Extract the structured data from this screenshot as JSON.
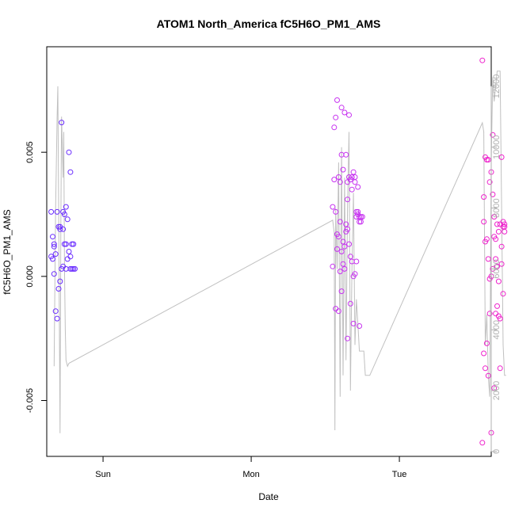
{
  "chart_data": {
    "type": "scatter",
    "title": "ATOM1 North_America fC5H6O_PM1_AMS",
    "xlabel": "Date",
    "ylabel": "fC5H6O_PM1_AMS",
    "x_unit": "days since Sunday 00:00",
    "xlim": [
      -0.38,
      2.62
    ],
    "x_ticks": [
      {
        "value": 0,
        "label": "Sun"
      },
      {
        "value": 1,
        "label": "Mon"
      },
      {
        "value": 2,
        "label": "Tue"
      }
    ],
    "ylim": [
      -0.00725,
      0.00925
    ],
    "y_ticks": [
      {
        "value": -0.005,
        "label": "-0.005"
      },
      {
        "value": 0,
        "label": "0.000"
      },
      {
        "value": 0.005,
        "label": "0.005"
      }
    ],
    "y2lim": [
      -160,
      13300
    ],
    "y2_ticks": [
      {
        "value": 0,
        "label": "0"
      },
      {
        "value": 2000,
        "label": "2000"
      },
      {
        "value": 4000,
        "label": "4000"
      },
      {
        "value": 6000,
        "label": "6000"
      },
      {
        "value": 8000,
        "label": "8000"
      },
      {
        "value": 10000,
        "label": "10000"
      },
      {
        "value": 12000,
        "label": "12000"
      }
    ],
    "grid": false,
    "colors": {
      "line": "#c0c0c0",
      "axis": "#000000",
      "right_axis": "#b0b0b0",
      "points_sun": "#6a2cff",
      "points_mon": "#c733f0",
      "points_tue": "#ee22cc"
    },
    "line_series": {
      "x": [
        -0.33,
        -0.32,
        -0.31,
        -0.305,
        -0.3,
        -0.29,
        -0.285,
        -0.28,
        -0.27,
        -0.265,
        -0.26,
        -0.255,
        -0.25,
        -0.24,
        -0.23,
        1.55,
        1.56,
        1.565,
        1.57,
        1.58,
        1.59,
        1.6,
        1.61,
        1.62,
        1.63,
        1.64,
        1.65,
        1.66,
        1.67,
        1.68,
        1.69,
        1.7,
        1.71,
        1.72,
        1.73,
        1.74,
        1.75,
        1.76,
        1.77,
        1.78,
        1.8,
        2.56,
        2.57,
        2.58,
        2.59,
        2.6,
        2.61,
        2.62,
        2.63,
        2.64,
        2.65,
        2.66,
        2.67,
        2.68,
        2.69,
        2.7,
        2.71,
        2.72
      ],
      "y": [
        2800,
        8000,
        11000,
        12000,
        8000,
        600,
        7500,
        11000,
        9000,
        10500,
        6000,
        4000,
        3000,
        2800,
        2900,
        7600,
        7200,
        700,
        8000,
        6000,
        9500,
        1800,
        10000,
        2500,
        9000,
        3000,
        8000,
        10500,
        2000,
        6000,
        8500,
        3500,
        5000,
        4200,
        3300,
        3300,
        3300,
        3300,
        2500,
        2500,
        2500,
        10800,
        10500,
        3500,
        4500,
        2500,
        1800,
        9500,
        12300,
        11500,
        12000,
        12500,
        12500,
        12500,
        8000,
        3500,
        2500,
        2500
      ]
    },
    "series": [
      {
        "x": [
          -0.35,
          -0.34,
          -0.33,
          -0.32,
          -0.31,
          -0.3,
          -0.29,
          -0.28,
          -0.27,
          -0.26,
          -0.25,
          -0.24,
          -0.23,
          -0.22,
          -0.21,
          -0.2,
          -0.19,
          -0.35,
          -0.34,
          -0.33,
          -0.32,
          -0.31,
          -0.3,
          -0.29,
          -0.28,
          -0.27,
          -0.26,
          -0.25,
          -0.24,
          -0.23,
          -0.22,
          -0.21,
          -0.2,
          -0.33,
          -0.29,
          -0.27,
          -0.25,
          -0.22
        ],
        "y": [
          0.0026,
          0.0016,
          0.0012,
          0.0009,
          0.0026,
          0.002,
          0.0019,
          0.0062,
          0.0026,
          0.0025,
          0.0028,
          0.0023,
          0.005,
          0.0042,
          0.0013,
          0.0003,
          0.0003,
          0.0008,
          0.0007,
          0.0001,
          -0.0014,
          -0.0017,
          -0.0005,
          -0.0002,
          0.0003,
          0.0004,
          0.0013,
          0.0013,
          0.0007,
          0.001,
          0.0008,
          0.0003,
          0.0013,
          0.0013,
          0.002,
          0.0019,
          0.0003,
          0.0003
        ]
      },
      {
        "x": [
          1.55,
          1.56,
          1.57,
          1.58,
          1.59,
          1.6,
          1.61,
          1.62,
          1.63,
          1.64,
          1.65,
          1.66,
          1.67,
          1.68,
          1.69,
          1.7,
          1.71,
          1.72,
          1.73,
          1.74,
          1.75,
          1.56,
          1.57,
          1.58,
          1.59,
          1.6,
          1.61,
          1.62,
          1.63,
          1.64,
          1.65,
          1.66,
          1.67,
          1.68,
          1.69,
          1.7,
          1.71,
          1.72,
          1.73,
          1.74,
          1.55,
          1.57,
          1.59,
          1.61,
          1.63,
          1.65,
          1.67,
          1.69,
          1.71,
          1.73,
          1.58,
          1.6,
          1.62,
          1.64,
          1.66,
          1.68,
          1.7,
          1.72,
          1.61,
          1.65
        ],
        "y": [
          0.0028,
          0.0039,
          0.0064,
          0.0071,
          0.004,
          0.0038,
          0.0049,
          0.0043,
          0.0066,
          0.0049,
          0.0038,
          0.004,
          0.0039,
          0.0035,
          0.0042,
          0.004,
          0.0024,
          0.0026,
          0.0024,
          0.0022,
          0.0024,
          0.006,
          0.0026,
          0.0017,
          0.0016,
          0.0022,
          0.001,
          0.0005,
          0.0012,
          0.0018,
          0.0019,
          0.0013,
          0.0008,
          0.0006,
          0.0,
          0.0001,
          0.0026,
          0.0025,
          0.0022,
          0.0024,
          0.0004,
          -0.0013,
          -0.0014,
          -0.0006,
          0.0003,
          -0.0025,
          -0.0011,
          -0.0019,
          0.0006,
          -0.002,
          0.0011,
          0.0002,
          0.0014,
          0.0021,
          0.0065,
          0.004,
          0.0038,
          0.0036,
          0.0068,
          0.0031
        ]
      },
      {
        "x": [
          2.56,
          2.57,
          2.58,
          2.59,
          2.6,
          2.61,
          2.62,
          2.63,
          2.64,
          2.65,
          2.66,
          2.67,
          2.68,
          2.69,
          2.7,
          2.71,
          2.57,
          2.58,
          2.59,
          2.6,
          2.61,
          2.62,
          2.63,
          2.64,
          2.65,
          2.66,
          2.67,
          2.68,
          2.69,
          2.7,
          2.71,
          2.56,
          2.58,
          2.6,
          2.62,
          2.64,
          2.66,
          2.68,
          2.7,
          2.57,
          2.59,
          2.61,
          2.63,
          2.65,
          2.67,
          2.69,
          2.71
        ],
        "y": [
          0.0087,
          0.0032,
          0.0048,
          0.0047,
          0.0047,
          0.0038,
          0.0042,
          0.0057,
          0.0024,
          0.0007,
          0.0021,
          0.0018,
          0.0021,
          0.0048,
          0.002,
          0.0021,
          0.0022,
          0.0014,
          0.0015,
          0.0007,
          -0.0001,
          0.0,
          0.0033,
          0.0016,
          -0.0015,
          0.0004,
          -0.0002,
          -0.0017,
          0.0012,
          0.0022,
          0.0018,
          -0.0067,
          -0.0037,
          -0.004,
          -0.0063,
          -0.0045,
          -0.0012,
          -0.0037,
          -0.0007,
          -0.0031,
          -0.0027,
          -0.0015,
          0.0003,
          0.0015,
          -0.0016,
          0.0005,
          0.002
        ]
      }
    ]
  }
}
